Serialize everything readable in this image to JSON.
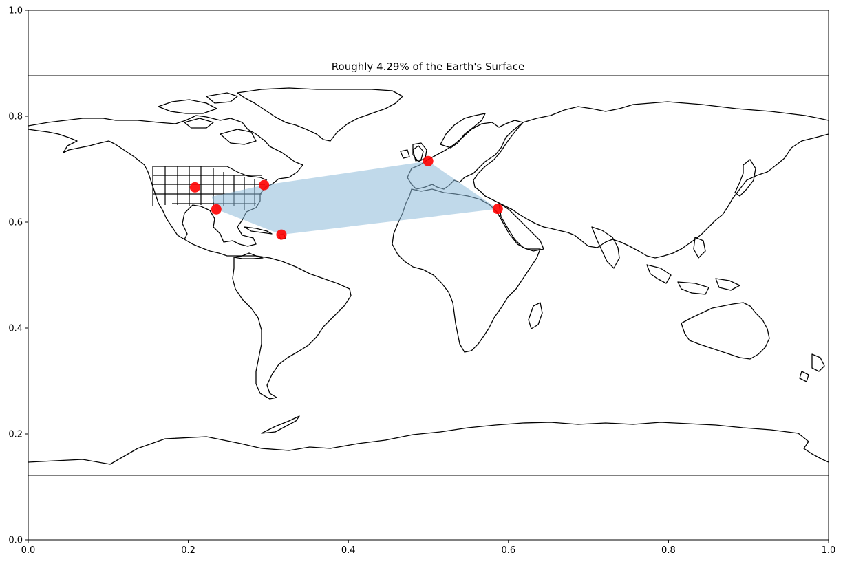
{
  "chart_data": {
    "type": "map",
    "title": "Roughly 4.29% of the Earth's Surface",
    "xlim": [
      0,
      1
    ],
    "ylim": [
      0,
      1
    ],
    "xticks": [
      "0.0",
      "0.2",
      "0.4",
      "0.6",
      "0.8",
      "1.0"
    ],
    "yticks": [
      "0.0",
      "0.2",
      "0.4",
      "0.6",
      "0.8",
      "1.0"
    ],
    "polygon": {
      "fill": "#8cbad8",
      "points_lonlat": [
        [
          -97.5,
          35.5
        ],
        [
          -73.9,
          40.7
        ],
        [
          -0.1,
          51.5
        ],
        [
          31.2,
          30.0
        ],
        [
          -66.1,
          18.4
        ],
        [
          -95.4,
          29.8
        ]
      ]
    },
    "markers": {
      "color": "#ff0000",
      "points_lonlat": [
        [
          -105.0,
          39.7
        ],
        [
          -73.9,
          40.7
        ],
        [
          -0.1,
          51.5
        ],
        [
          31.2,
          30.0
        ],
        [
          -66.1,
          18.4
        ],
        [
          -95.4,
          29.8
        ]
      ]
    },
    "map_colors": {
      "coastline": "#000000",
      "background": "#ffffff"
    }
  }
}
